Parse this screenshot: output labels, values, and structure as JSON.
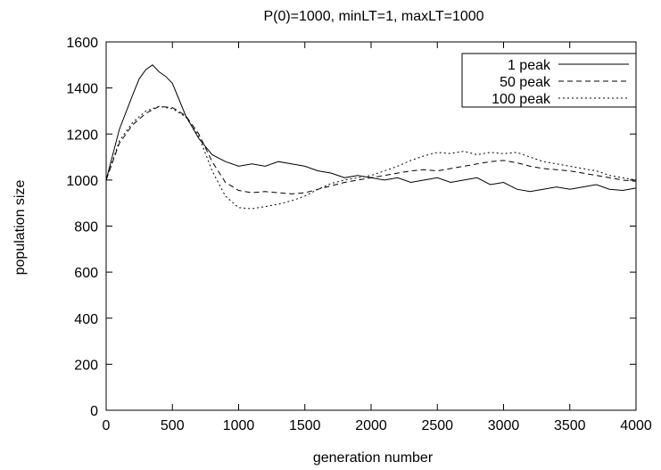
{
  "chart_data": {
    "type": "line",
    "title": "P(0)=1000, minLT=1, maxLT=1000",
    "xlabel": "generation number",
    "ylabel": "population size",
    "xlim": [
      0,
      4000
    ],
    "ylim": [
      0,
      1600
    ],
    "x_ticks": [
      0,
      500,
      1000,
      1500,
      2000,
      2500,
      3000,
      3500,
      4000
    ],
    "y_ticks": [
      0,
      200,
      400,
      600,
      800,
      1000,
      1200,
      1400,
      1600
    ],
    "grid": false,
    "legend_position": "top-right",
    "series": [
      {
        "name": "1 peak",
        "dash": "solid",
        "color": "#000000",
        "x": [
          0,
          100,
          200,
          250,
          300,
          350,
          400,
          450,
          500,
          550,
          600,
          700,
          800,
          900,
          1000,
          1100,
          1200,
          1300,
          1400,
          1500,
          1600,
          1700,
          1800,
          1900,
          2000,
          2100,
          2200,
          2300,
          2400,
          2500,
          2600,
          2700,
          2800,
          2900,
          3000,
          3100,
          3200,
          3300,
          3400,
          3500,
          3600,
          3700,
          3800,
          3900,
          4000
        ],
        "y": [
          1000,
          1220,
          1370,
          1440,
          1480,
          1500,
          1470,
          1450,
          1420,
          1350,
          1280,
          1180,
          1110,
          1080,
          1060,
          1070,
          1060,
          1080,
          1070,
          1060,
          1040,
          1030,
          1010,
          1020,
          1010,
          1000,
          1010,
          990,
          1000,
          1010,
          990,
          1000,
          1010,
          980,
          990,
          960,
          950,
          960,
          970,
          960,
          970,
          980,
          960,
          955,
          965
        ]
      },
      {
        "name": "50 peak",
        "dash": "6,4",
        "color": "#000000",
        "x": [
          0,
          100,
          200,
          300,
          400,
          500,
          600,
          700,
          800,
          900,
          1000,
          1100,
          1200,
          1300,
          1400,
          1500,
          1600,
          1700,
          1800,
          1900,
          2000,
          2100,
          2200,
          2300,
          2400,
          2500,
          2600,
          2700,
          2800,
          2900,
          3000,
          3100,
          3200,
          3300,
          3400,
          3500,
          3600,
          3700,
          3800,
          3900,
          4000
        ],
        "y": [
          1000,
          1160,
          1240,
          1290,
          1320,
          1315,
          1280,
          1200,
          1080,
          990,
          955,
          945,
          950,
          945,
          940,
          945,
          960,
          975,
          990,
          1000,
          1010,
          1020,
          1030,
          1040,
          1045,
          1040,
          1050,
          1060,
          1070,
          1080,
          1085,
          1075,
          1060,
          1050,
          1045,
          1040,
          1030,
          1020,
          1010,
          1000,
          995
        ]
      },
      {
        "name": "100 peak",
        "dash": "2,3",
        "color": "#000000",
        "x": [
          0,
          100,
          200,
          300,
          400,
          500,
          600,
          700,
          800,
          900,
          1000,
          1100,
          1200,
          1300,
          1400,
          1500,
          1600,
          1700,
          1800,
          1900,
          2000,
          2100,
          2200,
          2300,
          2400,
          2500,
          2600,
          2700,
          2800,
          2900,
          3000,
          3100,
          3200,
          3300,
          3400,
          3500,
          3600,
          3700,
          3800,
          3900,
          4000
        ],
        "y": [
          1000,
          1170,
          1250,
          1300,
          1320,
          1310,
          1275,
          1190,
          1040,
          930,
          880,
          875,
          885,
          895,
          910,
          930,
          960,
          985,
          1000,
          1010,
          1020,
          1040,
          1060,
          1085,
          1105,
          1120,
          1115,
          1125,
          1110,
          1120,
          1115,
          1120,
          1100,
          1080,
          1070,
          1060,
          1050,
          1040,
          1020,
          1010,
          1000
        ]
      }
    ]
  }
}
